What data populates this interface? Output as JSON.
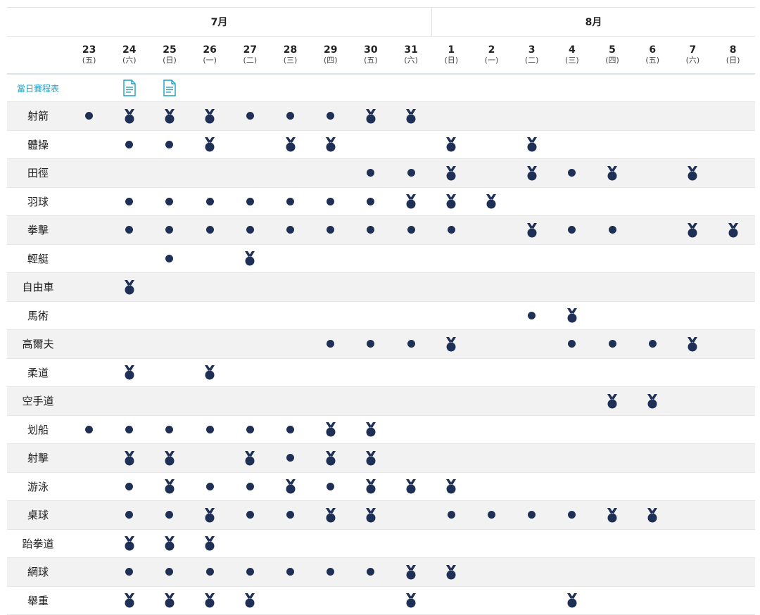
{
  "months": {
    "july": "7月",
    "august": "8月"
  },
  "dates": [
    {
      "day": "23",
      "wd": "(五)"
    },
    {
      "day": "24",
      "wd": "(六)"
    },
    {
      "day": "25",
      "wd": "(日)"
    },
    {
      "day": "26",
      "wd": "(一)"
    },
    {
      "day": "27",
      "wd": "(二)"
    },
    {
      "day": "28",
      "wd": "(三)"
    },
    {
      "day": "29",
      "wd": "(四)"
    },
    {
      "day": "30",
      "wd": "(五)"
    },
    {
      "day": "31",
      "wd": "(六)"
    },
    {
      "day": "1",
      "wd": "(日)"
    },
    {
      "day": "2",
      "wd": "(一)"
    },
    {
      "day": "3",
      "wd": "(二)"
    },
    {
      "day": "4",
      "wd": "(三)"
    },
    {
      "day": "5",
      "wd": "(四)"
    },
    {
      "day": "6",
      "wd": "(五)"
    },
    {
      "day": "7",
      "wd": "(六)"
    },
    {
      "day": "8",
      "wd": "(日)"
    }
  ],
  "schedule_label": "當日賽程表",
  "schedule_docs": [
    1,
    2
  ],
  "legend_colors": {
    "event": "#1f3057",
    "link": "#1aa1c4"
  },
  "sports": [
    {
      "name": "射箭",
      "marks": [
        "dot",
        "medal",
        "medal",
        "medal",
        "dot",
        "dot",
        "dot",
        "medal",
        "medal",
        "",
        "",
        "",
        "",
        "",
        "",
        "",
        ""
      ]
    },
    {
      "name": "體操",
      "marks": [
        "",
        "dot",
        "dot",
        "medal",
        "",
        "medal",
        "medal",
        "",
        "",
        "medal",
        "",
        "medal",
        "",
        "",
        "",
        "",
        ""
      ]
    },
    {
      "name": "田徑",
      "marks": [
        "",
        "",
        "",
        "",
        "",
        "",
        "",
        "dot",
        "dot",
        "medal",
        "",
        "medal",
        "dot",
        "medal",
        "",
        "medal",
        ""
      ]
    },
    {
      "name": "羽球",
      "marks": [
        "",
        "dot",
        "dot",
        "dot",
        "dot",
        "dot",
        "dot",
        "dot",
        "medal",
        "medal",
        "medal",
        "",
        "",
        "",
        "",
        "",
        ""
      ]
    },
    {
      "name": "拳擊",
      "marks": [
        "",
        "dot",
        "dot",
        "dot",
        "dot",
        "dot",
        "dot",
        "dot",
        "dot",
        "dot",
        "",
        "medal",
        "dot",
        "dot",
        "",
        "medal",
        "medal"
      ]
    },
    {
      "name": "輕艇",
      "marks": [
        "",
        "",
        "dot",
        "",
        "medal",
        "",
        "",
        "",
        "",
        "",
        "",
        "",
        "",
        "",
        "",
        "",
        ""
      ]
    },
    {
      "name": "自由車",
      "marks": [
        "",
        "medal",
        "",
        "",
        "",
        "",
        "",
        "",
        "",
        "",
        "",
        "",
        "",
        "",
        "",
        "",
        ""
      ]
    },
    {
      "name": "馬術",
      "marks": [
        "",
        "",
        "",
        "",
        "",
        "",
        "",
        "",
        "",
        "",
        "",
        "dot",
        "medal",
        "",
        "",
        "",
        ""
      ]
    },
    {
      "name": "高爾夫",
      "marks": [
        "",
        "",
        "",
        "",
        "",
        "",
        "dot",
        "dot",
        "dot",
        "medal",
        "",
        "",
        "dot",
        "dot",
        "dot",
        "medal",
        ""
      ]
    },
    {
      "name": "柔道",
      "marks": [
        "",
        "medal",
        "",
        "medal",
        "",
        "",
        "",
        "",
        "",
        "",
        "",
        "",
        "",
        "",
        "",
        "",
        ""
      ]
    },
    {
      "name": "空手道",
      "marks": [
        "",
        "",
        "",
        "",
        "",
        "",
        "",
        "",
        "",
        "",
        "",
        "",
        "",
        "medal",
        "medal",
        "",
        ""
      ]
    },
    {
      "name": "划船",
      "marks": [
        "dot",
        "dot",
        "dot",
        "dot",
        "dot",
        "dot",
        "medal",
        "medal",
        "",
        "",
        "",
        "",
        "",
        "",
        "",
        "",
        ""
      ]
    },
    {
      "name": "射擊",
      "marks": [
        "",
        "medal",
        "medal",
        "",
        "medal",
        "dot",
        "medal",
        "medal",
        "",
        "",
        "",
        "",
        "",
        "",
        "",
        "",
        ""
      ]
    },
    {
      "name": "游泳",
      "marks": [
        "",
        "dot",
        "medal",
        "dot",
        "dot",
        "medal",
        "dot",
        "medal",
        "medal",
        "medal",
        "",
        "",
        "",
        "",
        "",
        "",
        ""
      ]
    },
    {
      "name": "桌球",
      "marks": [
        "",
        "dot",
        "dot",
        "medal",
        "dot",
        "dot",
        "medal",
        "medal",
        "",
        "dot",
        "dot",
        "dot",
        "dot",
        "medal",
        "medal",
        "",
        ""
      ]
    },
    {
      "name": "跆拳道",
      "marks": [
        "",
        "medal",
        "medal",
        "medal",
        "",
        "",
        "",
        "",
        "",
        "",
        "",
        "",
        "",
        "",
        "",
        "",
        ""
      ]
    },
    {
      "name": "網球",
      "marks": [
        "",
        "dot",
        "dot",
        "dot",
        "dot",
        "dot",
        "dot",
        "dot",
        "medal",
        "medal",
        "",
        "",
        "",
        "",
        "",
        "",
        ""
      ]
    },
    {
      "name": "舉重",
      "marks": [
        "",
        "medal",
        "medal",
        "medal",
        "medal",
        "",
        "",
        "",
        "medal",
        "",
        "",
        "",
        "medal",
        "",
        "",
        "",
        ""
      ]
    }
  ]
}
